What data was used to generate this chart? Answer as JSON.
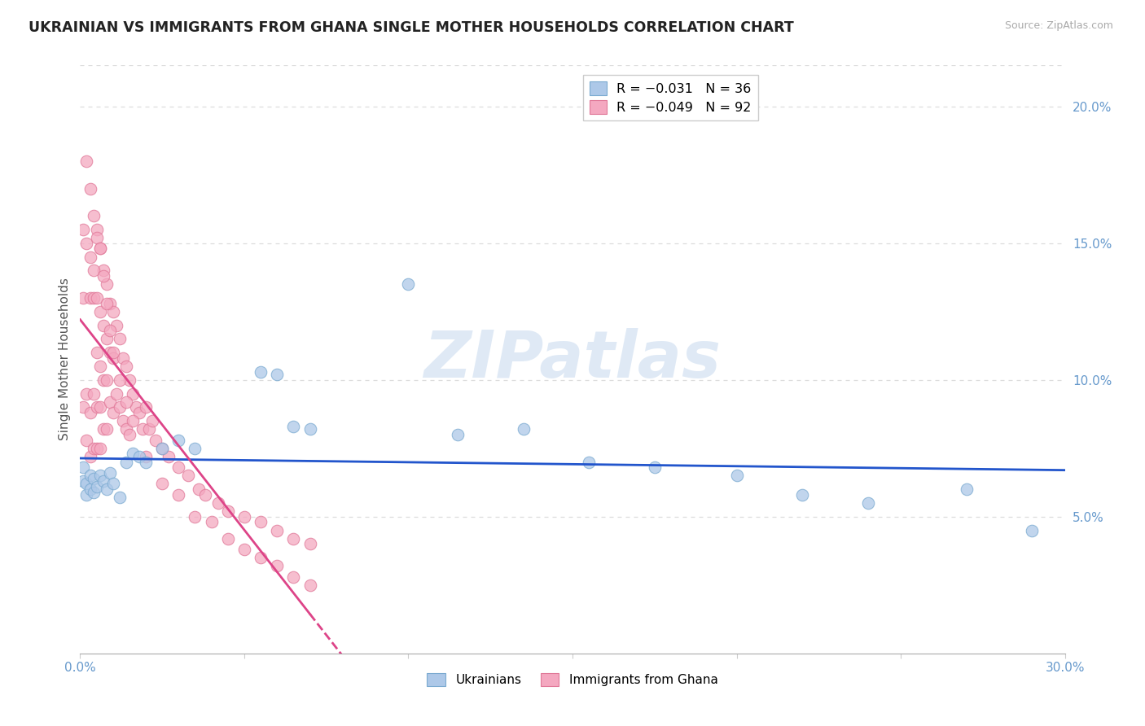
{
  "title": "UKRAINIAN VS IMMIGRANTS FROM GHANA SINGLE MOTHER HOUSEHOLDS CORRELATION CHART",
  "source": "Source: ZipAtlas.com",
  "ylabel_left": "Single Mother Households",
  "x_min": 0.0,
  "x_max": 0.3,
  "y_min": 0.0,
  "y_max": 0.215,
  "right_yticks": [
    0.05,
    0.1,
    0.15,
    0.2
  ],
  "right_yticklabels": [
    "5.0%",
    "10.0%",
    "15.0%",
    "20.0%"
  ],
  "xticks": [
    0.0,
    0.05,
    0.1,
    0.15,
    0.2,
    0.25,
    0.3
  ],
  "xticklabels_show": [
    "0.0%",
    "",
    "",
    "",
    "",
    "",
    "30.0%"
  ],
  "watermark_text": "ZIPatlas",
  "blue_scatter_color": "#adc8e8",
  "blue_scatter_edge": "#7aaad0",
  "pink_scatter_color": "#f4a8c0",
  "pink_scatter_edge": "#e07898",
  "blue_line_color": "#2255cc",
  "pink_line_color": "#dd4488",
  "legend_label_blue": "R = −0.031   N = 36",
  "legend_label_pink": "R = −0.049   N = 92",
  "bottom_legend_blue": "Ukrainians",
  "bottom_legend_pink": "Immigrants from Ghana",
  "grid_color": "#dddddd",
  "tick_color": "#6699cc",
  "ukrainians_x": [
    0.001,
    0.001,
    0.002,
    0.002,
    0.003,
    0.003,
    0.004,
    0.004,
    0.005,
    0.006,
    0.007,
    0.008,
    0.009,
    0.01,
    0.012,
    0.014,
    0.016,
    0.018,
    0.02,
    0.025,
    0.03,
    0.035,
    0.055,
    0.06,
    0.065,
    0.07,
    0.1,
    0.115,
    0.135,
    0.155,
    0.175,
    0.2,
    0.22,
    0.24,
    0.27,
    0.29
  ],
  "ukrainians_y": [
    0.068,
    0.063,
    0.062,
    0.058,
    0.065,
    0.06,
    0.064,
    0.059,
    0.061,
    0.065,
    0.063,
    0.06,
    0.066,
    0.062,
    0.057,
    0.07,
    0.073,
    0.072,
    0.07,
    0.075,
    0.078,
    0.075,
    0.103,
    0.102,
    0.083,
    0.082,
    0.135,
    0.08,
    0.082,
    0.07,
    0.068,
    0.065,
    0.058,
    0.055,
    0.06,
    0.045
  ],
  "ghana_x": [
    0.001,
    0.001,
    0.001,
    0.002,
    0.002,
    0.002,
    0.002,
    0.003,
    0.003,
    0.003,
    0.003,
    0.004,
    0.004,
    0.004,
    0.004,
    0.005,
    0.005,
    0.005,
    0.005,
    0.005,
    0.006,
    0.006,
    0.006,
    0.006,
    0.006,
    0.007,
    0.007,
    0.007,
    0.007,
    0.008,
    0.008,
    0.008,
    0.008,
    0.009,
    0.009,
    0.009,
    0.01,
    0.01,
    0.01,
    0.011,
    0.011,
    0.012,
    0.012,
    0.013,
    0.013,
    0.014,
    0.014,
    0.015,
    0.015,
    0.016,
    0.017,
    0.018,
    0.019,
    0.02,
    0.021,
    0.022,
    0.023,
    0.025,
    0.027,
    0.03,
    0.033,
    0.036,
    0.038,
    0.042,
    0.045,
    0.05,
    0.055,
    0.06,
    0.065,
    0.07,
    0.003,
    0.004,
    0.005,
    0.006,
    0.007,
    0.008,
    0.009,
    0.01,
    0.012,
    0.014,
    0.016,
    0.02,
    0.025,
    0.03,
    0.035,
    0.04,
    0.045,
    0.05,
    0.055,
    0.06,
    0.065,
    0.07
  ],
  "ghana_y": [
    0.155,
    0.13,
    0.09,
    0.18,
    0.15,
    0.095,
    0.078,
    0.17,
    0.13,
    0.088,
    0.072,
    0.16,
    0.13,
    0.095,
    0.075,
    0.155,
    0.13,
    0.11,
    0.09,
    0.075,
    0.148,
    0.125,
    0.105,
    0.09,
    0.075,
    0.14,
    0.12,
    0.1,
    0.082,
    0.135,
    0.115,
    0.1,
    0.082,
    0.128,
    0.11,
    0.092,
    0.125,
    0.108,
    0.088,
    0.12,
    0.095,
    0.115,
    0.09,
    0.108,
    0.085,
    0.105,
    0.082,
    0.1,
    0.08,
    0.095,
    0.09,
    0.088,
    0.082,
    0.09,
    0.082,
    0.085,
    0.078,
    0.075,
    0.072,
    0.068,
    0.065,
    0.06,
    0.058,
    0.055,
    0.052,
    0.05,
    0.048,
    0.045,
    0.042,
    0.04,
    0.145,
    0.14,
    0.152,
    0.148,
    0.138,
    0.128,
    0.118,
    0.11,
    0.1,
    0.092,
    0.085,
    0.072,
    0.062,
    0.058,
    0.05,
    0.048,
    0.042,
    0.038,
    0.035,
    0.032,
    0.028,
    0.025
  ]
}
